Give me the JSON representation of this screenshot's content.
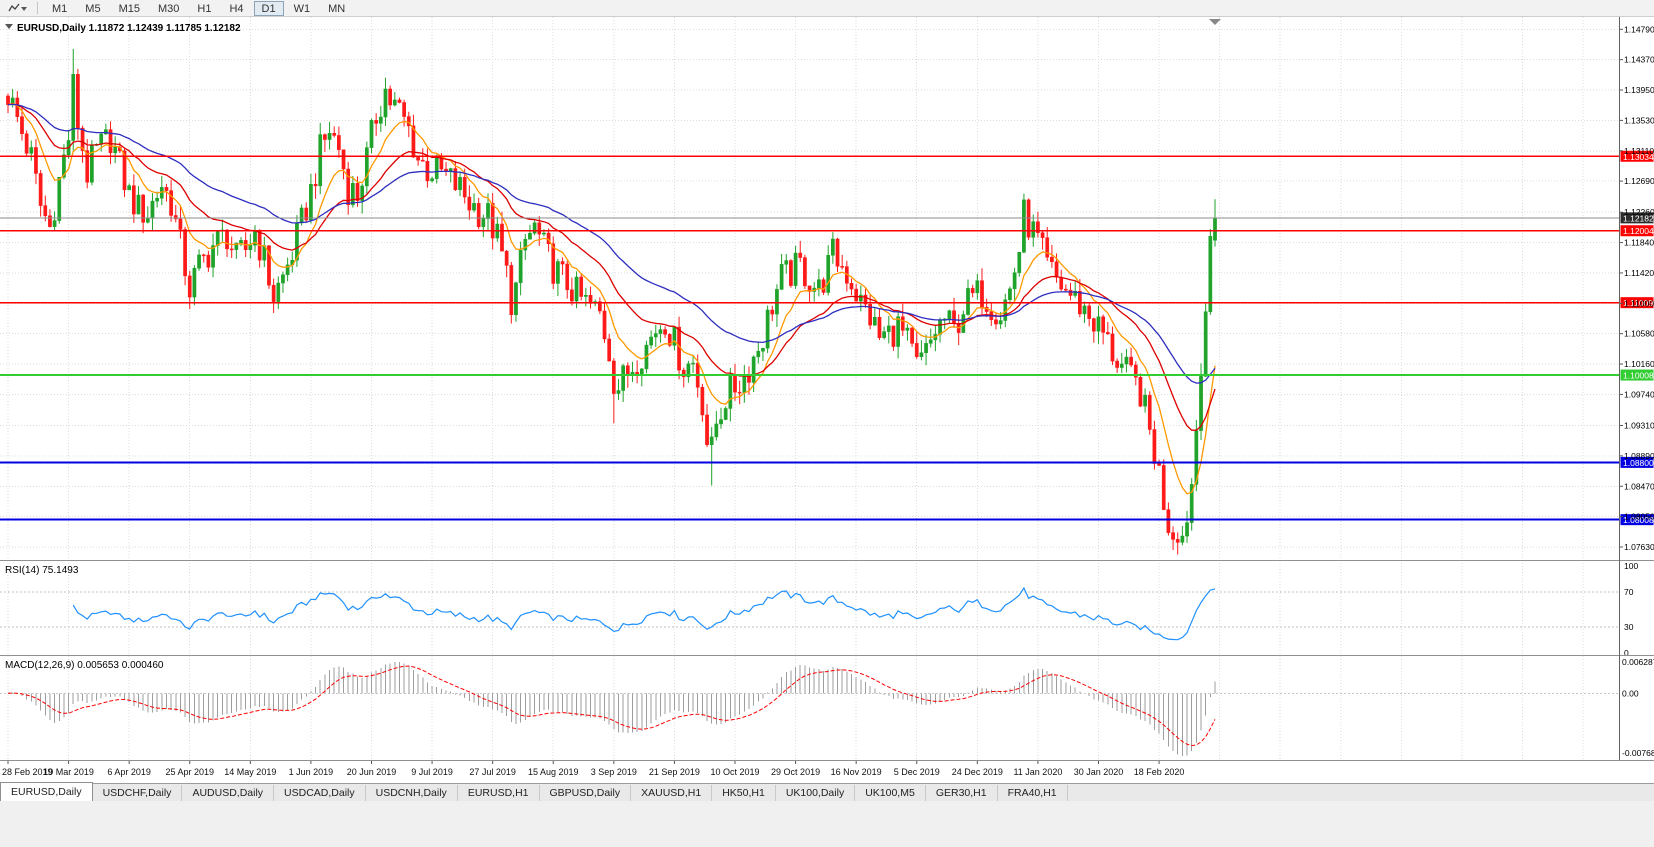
{
  "toolbar": {
    "timeframes": [
      "M1",
      "M5",
      "M15",
      "M30",
      "H1",
      "H4",
      "D1",
      "W1",
      "MN"
    ],
    "active": "D1"
  },
  "chart": {
    "info_line": "EURUSD,Daily  1.11872 1.12439 1.11785 1.12182",
    "price_axis": [
      "1.14790",
      "1.14370",
      "1.13950",
      "1.13530",
      "1.13110",
      "1.12690",
      "1.12260",
      "1.11840",
      "1.11420",
      "1.11000",
      "1.10580",
      "1.10160",
      "1.09740",
      "1.09310",
      "1.08890",
      "1.08470",
      "1.08050",
      "1.07630"
    ],
    "date_axis": [
      "28 Feb 2019",
      "19 Mar 2019",
      "6 Apr 2019",
      "25 Apr 2019",
      "14 May 2019",
      "1 Jun 2019",
      "20 Jun 2019",
      "9 Jul 2019",
      "27 Jul 2019",
      "15 Aug 2019",
      "3 Sep 2019",
      "21 Sep 2019",
      "10 Oct 2019",
      "29 Oct 2019",
      "16 Nov 2019",
      "5 Dec 2019",
      "24 Dec 2019",
      "11 Jan 2020",
      "30 Jan 2020",
      "18 Feb 2020"
    ]
  },
  "rsi": {
    "header": "RSI(14) 75.1493",
    "levels": [
      "100",
      "70",
      "30",
      "0"
    ]
  },
  "macd": {
    "header": "MACD(12,26,9) 0.005653 0.000460",
    "axis": [
      "0.006287",
      "0.00",
      "-0.007685"
    ]
  },
  "tabs": [
    {
      "label": "EURUSD,Daily",
      "active": true
    },
    {
      "label": "USDCHF,Daily",
      "active": false
    },
    {
      "label": "AUDUSD,Daily",
      "active": false
    },
    {
      "label": "USDCAD,Daily",
      "active": false
    },
    {
      "label": "USDCNH,Daily",
      "active": false
    },
    {
      "label": "EURUSD,H1",
      "active": false
    },
    {
      "label": "GBPUSD,Daily",
      "active": false
    },
    {
      "label": "XAUUSD,H1",
      "active": false
    },
    {
      "label": "HK50,H1",
      "active": false
    },
    {
      "label": "UK100,Daily",
      "active": false
    },
    {
      "label": "UK100,M5",
      "active": false
    },
    {
      "label": "GER30,H1",
      "active": false
    },
    {
      "label": "FRA40,H1",
      "active": false
    }
  ],
  "chart_data": {
    "type": "candlestick",
    "symbol": "EURUSD",
    "timeframe": "Daily",
    "last_ohlc": {
      "open": 1.11872,
      "high": 1.12439,
      "low": 1.11785,
      "close": 1.12182
    },
    "price_range": {
      "top": 1.1496,
      "bottom": 1.0745
    },
    "n_candles": 260,
    "date_tick_interval": 13,
    "close_noise": 0.0024,
    "wick_noise": 0.0018,
    "close_anchors": [
      [
        0,
        1.139
      ],
      [
        2,
        1.1355
      ],
      [
        5,
        1.13
      ],
      [
        7,
        1.1235
      ],
      [
        9,
        1.1205
      ],
      [
        11,
        1.127
      ],
      [
        13,
        1.133
      ],
      [
        14,
        1.14
      ],
      [
        15,
        1.135
      ],
      [
        17,
        1.128
      ],
      [
        19,
        1.131
      ],
      [
        22,
        1.133
      ],
      [
        24,
        1.129
      ],
      [
        26,
        1.125
      ],
      [
        28,
        1.123
      ],
      [
        30,
        1.1225
      ],
      [
        33,
        1.1265
      ],
      [
        35,
        1.124
      ],
      [
        37,
        1.118
      ],
      [
        39,
        1.112
      ],
      [
        41,
        1.115
      ],
      [
        44,
        1.118
      ],
      [
        47,
        1.1195
      ],
      [
        49,
        1.116
      ],
      [
        51,
        1.1175
      ],
      [
        53,
        1.12
      ],
      [
        55,
        1.116
      ],
      [
        57,
        1.111
      ],
      [
        59,
        1.1135
      ],
      [
        61,
        1.117
      ],
      [
        63,
        1.121
      ],
      [
        65,
        1.1255
      ],
      [
        67,
        1.131
      ],
      [
        69,
        1.134
      ],
      [
        71,
        1.1315
      ],
      [
        73,
        1.126
      ],
      [
        75,
        1.125
      ],
      [
        77,
        1.13
      ],
      [
        79,
        1.136
      ],
      [
        81,
        1.1395
      ],
      [
        82,
        1.138
      ],
      [
        84,
        1.1365
      ],
      [
        86,
        1.134
      ],
      [
        88,
        1.13
      ],
      [
        90,
        1.1285
      ],
      [
        93,
        1.128
      ],
      [
        95,
        1.127
      ],
      [
        97,
        1.1258
      ],
      [
        99,
        1.124
      ],
      [
        101,
        1.1228
      ],
      [
        103,
        1.122
      ],
      [
        105,
        1.119
      ],
      [
        107,
        1.114
      ],
      [
        108,
        1.1105
      ],
      [
        109,
        1.112
      ],
      [
        111,
        1.1185
      ],
      [
        113,
        1.1205
      ],
      [
        115,
        1.1175
      ],
      [
        117,
        1.115
      ],
      [
        119,
        1.1135
      ],
      [
        121,
        1.112
      ],
      [
        123,
        1.1105
      ],
      [
        125,
        1.1095
      ],
      [
        127,
        1.1085
      ],
      [
        129,
        1.1035
      ],
      [
        130,
        1.0995
      ],
      [
        131,
        1.0985
      ],
      [
        133,
        1.1005
      ],
      [
        135,
        1.1025
      ],
      [
        137,
        1.104
      ],
      [
        139,
        1.1065
      ],
      [
        141,
        1.1078
      ],
      [
        143,
        1.1045
      ],
      [
        145,
        1.1012
      ],
      [
        147,
        1.1018
      ],
      [
        149,
        1.0965
      ],
      [
        150,
        1.091
      ],
      [
        151,
        1.0895
      ],
      [
        152,
        1.0935
      ],
      [
        154,
        1.097
      ],
      [
        156,
        1.0985
      ],
      [
        158,
        1.0998
      ],
      [
        160,
        1.1025
      ],
      [
        162,
        1.1055
      ],
      [
        164,
        1.11
      ],
      [
        166,
        1.1135
      ],
      [
        168,
        1.1142
      ],
      [
        170,
        1.1152
      ],
      [
        172,
        1.1132
      ],
      [
        174,
        1.1118
      ],
      [
        176,
        1.115
      ],
      [
        177,
        1.1168
      ],
      [
        179,
        1.1152
      ],
      [
        181,
        1.113
      ],
      [
        183,
        1.11
      ],
      [
        185,
        1.1082
      ],
      [
        187,
        1.1052
      ],
      [
        189,
        1.1058
      ],
      [
        191,
        1.1068
      ],
      [
        193,
        1.1045
      ],
      [
        195,
        1.1012
      ],
      [
        197,
        1.103
      ],
      [
        199,
        1.1062
      ],
      [
        201,
        1.1078
      ],
      [
        203,
        1.1062
      ],
      [
        205,
        1.1095
      ],
      [
        207,
        1.1108
      ],
      [
        209,
        1.1115
      ],
      [
        211,
        1.1098
      ],
      [
        213,
        1.1088
      ],
      [
        215,
        1.1118
      ],
      [
        217,
        1.1175
      ],
      [
        218,
        1.1222
      ],
      [
        219,
        1.121
      ],
      [
        221,
        1.1185
      ],
      [
        223,
        1.115
      ],
      [
        225,
        1.1132
      ],
      [
        227,
        1.1118
      ],
      [
        229,
        1.1105
      ],
      [
        231,
        1.1092
      ],
      [
        233,
        1.1075
      ],
      [
        235,
        1.1058
      ],
      [
        237,
        1.1032
      ],
      [
        239,
        1.1012
      ],
      [
        241,
        1.0995
      ],
      [
        243,
        1.0978
      ],
      [
        245,
        1.0922
      ],
      [
        247,
        1.0865
      ],
      [
        248,
        1.0828
      ],
      [
        249,
        1.0798
      ],
      [
        250,
        1.0785
      ],
      [
        251,
        1.079
      ],
      [
        252,
        1.0778
      ],
      [
        253,
        1.08
      ],
      [
        254,
        1.085
      ],
      [
        255,
        1.0925
      ],
      [
        256,
        1.1005
      ],
      [
        257,
        1.109
      ],
      [
        258,
        1.1187
      ],
      [
        259,
        1.12182
      ]
    ],
    "spikes": [
      {
        "i": 14,
        "high": 1.1452
      },
      {
        "i": 81,
        "high": 1.1412
      },
      {
        "i": 108,
        "low": 1.1072
      },
      {
        "i": 130,
        "low": 1.0934
      },
      {
        "i": 151,
        "low": 1.0848
      },
      {
        "i": 218,
        "high": 1.124
      },
      {
        "i": 252,
        "low": 1.077
      }
    ],
    "candle_colors": {
      "up": "#1FA32A",
      "down": "#FF1A1A"
    },
    "moving_averages": [
      {
        "period": 10,
        "color": "#FF9900"
      },
      {
        "period": 25,
        "color": "#DD0000"
      },
      {
        "period": 50,
        "color": "#2E2EC0"
      }
    ],
    "horizontal_lines": [
      {
        "price": 1.13034,
        "label": "1.13034",
        "color": "#FF0000",
        "width": 1.3
      },
      {
        "price": 1.12004,
        "label": "1.12004",
        "color": "#FF0000",
        "width": 1.3
      },
      {
        "price": 1.11009,
        "label": "1.11009",
        "color": "#FF0000",
        "width": 1.3
      },
      {
        "price": 1.10008,
        "label": "1.10008",
        "color": "#32CD32",
        "width": 2
      },
      {
        "price": 1.088,
        "label": "1.08800",
        "color": "#0000E0",
        "width": 2
      },
      {
        "price": 1.08008,
        "label": "1.08008",
        "color": "#0000E0",
        "width": 2
      }
    ],
    "bid": {
      "price": 1.12182,
      "label": "1.12182",
      "line_color": "#8C8C8C",
      "label_bg": "#2B2B2B"
    },
    "rsi": {
      "period": 14,
      "current": 75.1493,
      "color": "#1E90FF",
      "level_lines": [
        70,
        30
      ]
    },
    "macd": {
      "fast": 12,
      "slow": 26,
      "signal": 9,
      "main_value": 0.005653,
      "signal_value": 0.00046,
      "histogram_color": "#9E9E9E",
      "signal_color": "#FF0000"
    }
  }
}
